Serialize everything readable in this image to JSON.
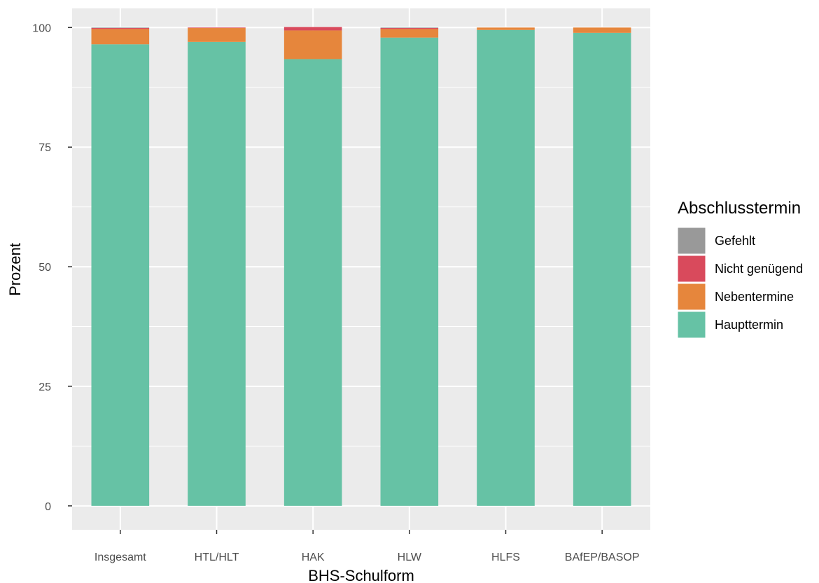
{
  "chart_data": {
    "type": "bar",
    "stacked": true,
    "title": "",
    "xlabel": "BHS-Schulform",
    "ylabel": "Prozent",
    "ylim": [
      -5,
      104
    ],
    "yticks": [
      0,
      25,
      50,
      75,
      100
    ],
    "grid": true,
    "legend": {
      "title": "Abschlusstermin",
      "position": "right"
    },
    "categories": [
      "Insgesamt",
      "HTL/HLT",
      "HAK",
      "HLW",
      "HLFS",
      "BAfEP/BASOP"
    ],
    "series": [
      {
        "name": "Haupttermin",
        "color": "#66c2a5",
        "values": [
          96.5,
          97.0,
          93.4,
          97.9,
          99.5,
          98.9
        ]
      },
      {
        "name": "Nebentermine",
        "color": "#e6863c",
        "values": [
          3.2,
          2.9,
          6.0,
          1.8,
          0.5,
          1.1
        ]
      },
      {
        "name": "Nicht genügend",
        "color": "#d94a5c",
        "values": [
          0.2,
          0.1,
          0.7,
          0.2,
          0.0,
          0.0
        ]
      },
      {
        "name": "Gefehlt",
        "color": "#999999",
        "values": [
          0.1,
          0.0,
          0.0,
          0.1,
          0.0,
          0.0
        ]
      }
    ],
    "legend_order": [
      "Gefehlt",
      "Nicht genügend",
      "Nebentermine",
      "Haupttermin"
    ]
  }
}
